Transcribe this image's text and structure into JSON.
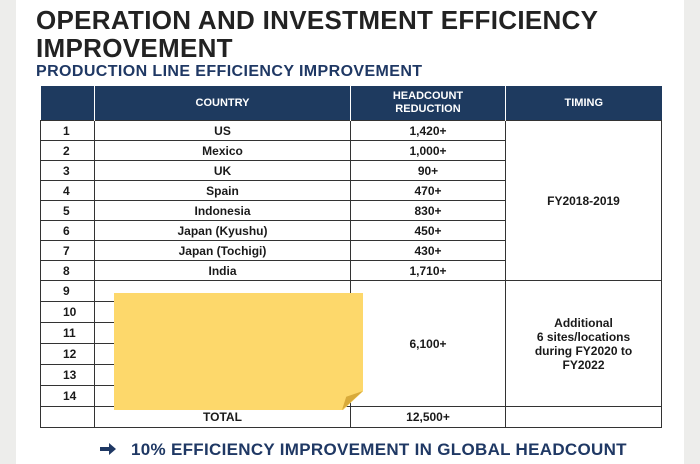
{
  "header": {
    "title": "OPERATION AND INVESTMENT EFFICIENCY IMPROVEMENT",
    "subtitle": "PRODUCTION LINE EFFICIENCY IMPROVEMENT"
  },
  "table": {
    "columns": [
      "",
      "COUNTRY",
      "HEADCOUNT\nREDUCTION",
      "TIMING"
    ],
    "rows": [
      {
        "num": "1",
        "country": "US",
        "reduction": "1,420+"
      },
      {
        "num": "2",
        "country": "Mexico",
        "reduction": "1,000+"
      },
      {
        "num": "3",
        "country": "UK",
        "reduction": "90+"
      },
      {
        "num": "4",
        "country": "Spain",
        "reduction": "470+"
      },
      {
        "num": "5",
        "country": "Indonesia",
        "reduction": "830+"
      },
      {
        "num": "6",
        "country": "Japan (Kyushu)",
        "reduction": "450+"
      },
      {
        "num": "7",
        "country": "Japan (Tochigi)",
        "reduction": "430+"
      },
      {
        "num": "8",
        "country": "India",
        "reduction": "1,710+"
      },
      {
        "num": "9"
      },
      {
        "num": "10"
      },
      {
        "num": "11"
      },
      {
        "num": "12"
      },
      {
        "num": "13"
      },
      {
        "num": "14"
      }
    ],
    "group1_timing": "FY2018-2019",
    "group2_reduction": "6,100+",
    "group2_timing": "Additional\n6 sites/locations\nduring FY2020 to\nFY2022",
    "total_label": "TOTAL",
    "total_value": "12,500+"
  },
  "footer": {
    "arrow_icon": "arrow-right-icon",
    "text": "10% EFFICIENCY IMPROVEMENT IN GLOBAL HEADCOUNT"
  },
  "colors": {
    "header_bg": "#1e3a5f",
    "accent_text": "#1f3864",
    "sticky_note": "#fdd86b"
  }
}
